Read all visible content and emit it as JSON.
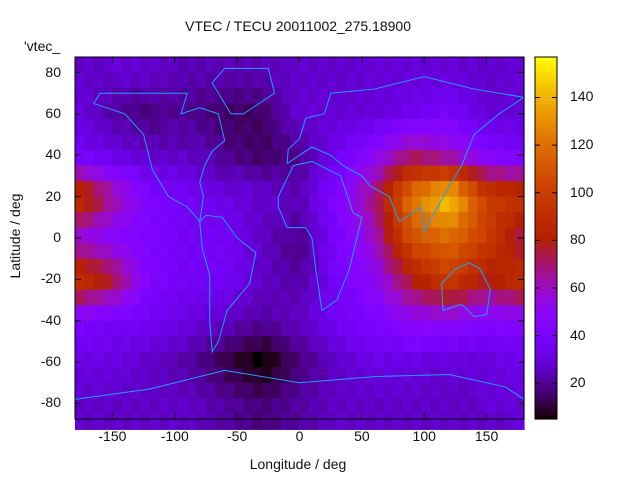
{
  "chart_data": {
    "type": "heatmap",
    "title": "VTEC / TECU 20011002_275.18900",
    "xlabel": "Longitude / deg",
    "ylabel": "Latitude / deg",
    "legend_label": "'vtec_",
    "xlim": [
      -180,
      180
    ],
    "ylim": [
      -87.5,
      87.5
    ],
    "xticks": [
      -150,
      -100,
      -50,
      0,
      50,
      100,
      150
    ],
    "yticks": [
      -80,
      -60,
      -40,
      -20,
      0,
      20,
      40,
      60,
      80
    ],
    "colorbar": {
      "range": [
        5,
        157
      ],
      "ticks": [
        20,
        40,
        60,
        80,
        100,
        120,
        140
      ],
      "colormap": "black-purple-red-orange-yellow"
    },
    "grid": {
      "lons": [
        -180,
        -150,
        -120,
        -90,
        -60,
        -30,
        0,
        30,
        60,
        90,
        120,
        150,
        180
      ],
      "lats": [
        80,
        60,
        40,
        20,
        0,
        -20,
        -40,
        -60,
        -80
      ],
      "values": [
        [
          30,
          30,
          28,
          25,
          25,
          25,
          28,
          28,
          30,
          30,
          30,
          28,
          30
        ],
        [
          35,
          25,
          20,
          20,
          15,
          15,
          30,
          30,
          30,
          35,
          40,
          30,
          30
        ],
        [
          40,
          35,
          30,
          30,
          20,
          15,
          20,
          35,
          50,
          70,
          60,
          45,
          40
        ],
        [
          100,
          70,
          45,
          40,
          35,
          30,
          25,
          45,
          70,
          125,
          150,
          100,
          95
        ],
        [
          60,
          50,
          45,
          40,
          40,
          30,
          20,
          40,
          60,
          110,
          120,
          100,
          70
        ],
        [
          100,
          80,
          45,
          40,
          40,
          30,
          25,
          40,
          50,
          80,
          100,
          80,
          95
        ],
        [
          45,
          40,
          40,
          35,
          30,
          25,
          30,
          40,
          45,
          50,
          50,
          45,
          45
        ],
        [
          35,
          35,
          30,
          25,
          15,
          6,
          20,
          30,
          35,
          35,
          30,
          30,
          35
        ],
        [
          30,
          30,
          30,
          30,
          25,
          20,
          25,
          30,
          30,
          30,
          30,
          30,
          30
        ]
      ]
    },
    "coastline_color": "#1ea0ff"
  }
}
